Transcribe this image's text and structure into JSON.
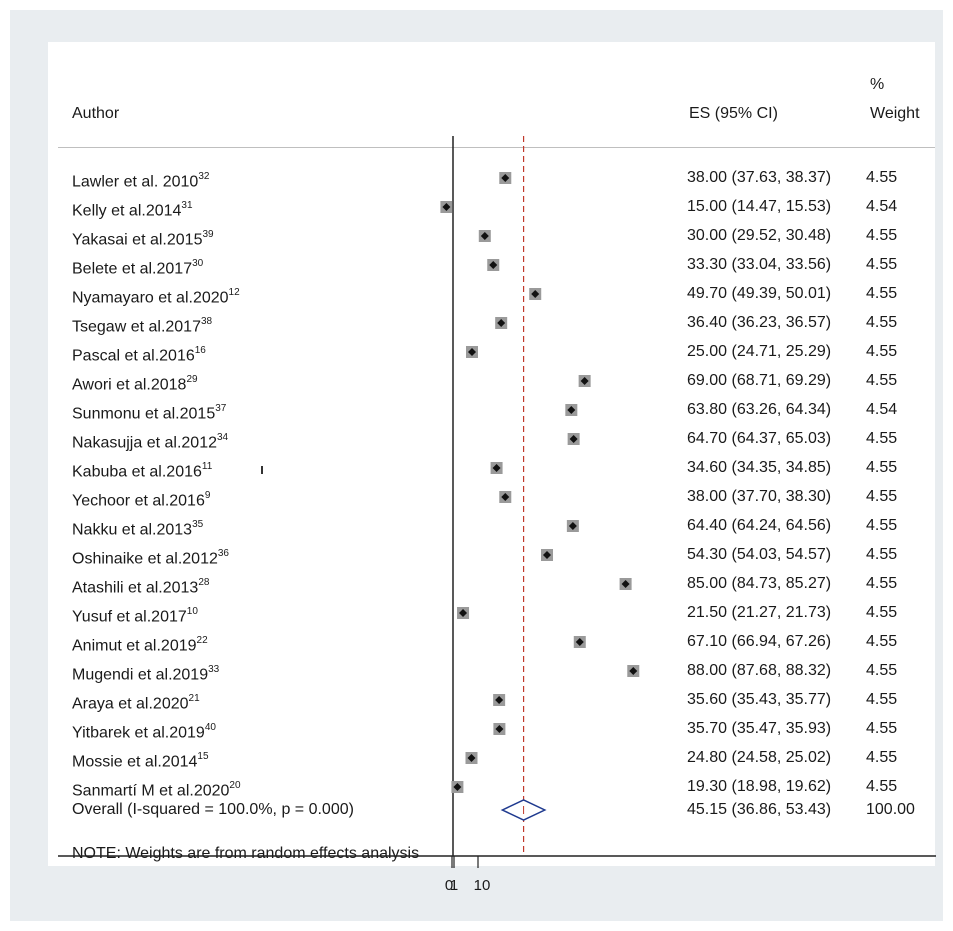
{
  "header": {
    "author": "Author",
    "es": "ES (95% CI)",
    "weight_pct": "%",
    "weight": "Weight"
  },
  "studies": [
    {
      "author": "Lawler et al. 2010",
      "ref": "32",
      "ci": "38.00 (37.63, 38.37)",
      "weight": "4.55"
    },
    {
      "author": "Kelly et al.2014",
      "ref": "31",
      "ci": "15.00 (14.47, 15.53)",
      "weight": "4.54"
    },
    {
      "author": "Yakasai et al.2015",
      "ref": "39",
      "ci": "30.00 (29.52, 30.48)",
      "weight": "4.55"
    },
    {
      "author": "Belete et al.2017",
      "ref": "30",
      "ci": "33.30 (33.04, 33.56)",
      "weight": "4.55"
    },
    {
      "author": "Nyamayaro et al.2020",
      "ref": "12",
      "ci": "49.70 (49.39, 50.01)",
      "weight": "4.55"
    },
    {
      "author": "Tsegaw et al.2017",
      "ref": "38",
      "ci": "36.40 (36.23, 36.57)",
      "weight": "4.55"
    },
    {
      "author": "Pascal et al.2016",
      "ref": "16",
      "ci": "25.00 (24.71, 25.29)",
      "weight": "4.55"
    },
    {
      "author": "Awori et al.2018",
      "ref": "29",
      "ci": "69.00 (68.71, 69.29)",
      "weight": "4.55"
    },
    {
      "author": "Sunmonu et al.2015",
      "ref": "37",
      "ci": "63.80 (63.26, 64.34)",
      "weight": "4.54"
    },
    {
      "author": "Nakasujja et al.2012",
      "ref": "34",
      "ci": "64.70 (64.37, 65.03)",
      "weight": "4.55"
    },
    {
      "author": "Kabuba et al.2016",
      "ref": "11",
      "ci": "34.60 (34.35, 34.85)",
      "weight": "4.55"
    },
    {
      "author": "Yechoor et al.2016",
      "ref": "9",
      "ci": "38.00 (37.70, 38.30)",
      "weight": "4.55"
    },
    {
      "author": "Nakku et al.2013",
      "ref": "35",
      "ci": "64.40 (64.24, 64.56)",
      "weight": "4.55"
    },
    {
      "author": "Oshinaike et al.2012",
      "ref": "36",
      "ci": "54.30 (54.03, 54.57)",
      "weight": "4.55"
    },
    {
      "author": "Atashili et al.2013",
      "ref": "28",
      "ci": "85.00 (84.73, 85.27)",
      "weight": "4.55"
    },
    {
      "author": "Yusuf et al.2017",
      "ref": "10",
      "ci": "21.50 (21.27, 21.73)",
      "weight": "4.55"
    },
    {
      "author": "Animut et al.2019",
      "ref": "22",
      "ci": "67.10 (66.94, 67.26)",
      "weight": "4.55"
    },
    {
      "author": "Mugendi et al.2019",
      "ref": "33",
      "ci": "88.00 (87.68, 88.32)",
      "weight": "4.55"
    },
    {
      "author": "Araya et al.2020",
      "ref": "21",
      "ci": "35.60 (35.43, 35.77)",
      "weight": "4.55"
    },
    {
      "author": "Yitbarek et al.2019",
      "ref": "40",
      "ci": "35.70 (35.47, 35.93)",
      "weight": "4.55"
    },
    {
      "author": "Mossie et al.2014",
      "ref": "15",
      "ci": "24.80 (24.58, 25.02)",
      "weight": "4.55"
    },
    {
      "author": "Sanmartí M et al.2020",
      "ref": "20",
      "ci": "19.30 (18.98, 19.62)",
      "weight": "4.55"
    }
  ],
  "overall": {
    "label": "Overall  (I-squared = 100.0%, p = 0.000)",
    "ci": "45.15 (36.86, 53.43)",
    "weight": "100.00"
  },
  "note": "NOTE: Weights are from random effects analysis",
  "axis": {
    "tick_labels": [
      "0",
      "1",
      "10"
    ]
  },
  "chart_data": {
    "type": "scatter",
    "title": "",
    "xlabel": "",
    "ylabel": "",
    "x_ticks": [
      "0",
      "1",
      "10"
    ],
    "series": [
      {
        "values": [
          {
            "study": "Lawler et al. 2010",
            "es": 38.0,
            "lower": 37.63,
            "upper": 38.37,
            "weight": 4.55
          },
          {
            "study": "Kelly et al.2014",
            "es": 15.0,
            "lower": 14.47,
            "upper": 15.53,
            "weight": 4.54
          },
          {
            "study": "Yakasai et al.2015",
            "es": 30.0,
            "lower": 29.52,
            "upper": 30.48,
            "weight": 4.55
          },
          {
            "study": "Belete et al.2017",
            "es": 33.3,
            "lower": 33.04,
            "upper": 33.56,
            "weight": 4.55
          },
          {
            "study": "Nyamayaro et al.2020",
            "es": 49.7,
            "lower": 49.39,
            "upper": 50.01,
            "weight": 4.55
          },
          {
            "study": "Tsegaw et al.2017",
            "es": 36.4,
            "lower": 36.23,
            "upper": 36.57,
            "weight": 4.55
          },
          {
            "study": "Pascal et al.2016",
            "es": 25.0,
            "lower": 24.71,
            "upper": 25.29,
            "weight": 4.55
          },
          {
            "study": "Awori et al.2018",
            "es": 69.0,
            "lower": 68.71,
            "upper": 69.29,
            "weight": 4.55
          },
          {
            "study": "Sunmonu et al.2015",
            "es": 63.8,
            "lower": 63.26,
            "upper": 64.34,
            "weight": 4.54
          },
          {
            "study": "Nakasujja et al.2012",
            "es": 64.7,
            "lower": 64.37,
            "upper": 65.03,
            "weight": 4.55
          },
          {
            "study": "Kabuba et al.2016",
            "es": 34.6,
            "lower": 34.35,
            "upper": 34.85,
            "weight": 4.55
          },
          {
            "study": "Yechoor et al.2016",
            "es": 38.0,
            "lower": 37.7,
            "upper": 38.3,
            "weight": 4.55
          },
          {
            "study": "Nakku et al.2013",
            "es": 64.4,
            "lower": 64.24,
            "upper": 64.56,
            "weight": 4.55
          },
          {
            "study": "Oshinaike et al.2012",
            "es": 54.3,
            "lower": 54.03,
            "upper": 54.57,
            "weight": 4.55
          },
          {
            "study": "Atashili et al.2013",
            "es": 85.0,
            "lower": 84.73,
            "upper": 85.27,
            "weight": 4.55
          },
          {
            "study": "Yusuf et al.2017",
            "es": 21.5,
            "lower": 21.27,
            "upper": 21.73,
            "weight": 4.55
          },
          {
            "study": "Animut et al.2019",
            "es": 67.1,
            "lower": 66.94,
            "upper": 67.26,
            "weight": 4.55
          },
          {
            "study": "Mugendi et al.2019",
            "es": 88.0,
            "lower": 87.68,
            "upper": 88.32,
            "weight": 4.55
          },
          {
            "study": "Araya et al.2020",
            "es": 35.6,
            "lower": 35.43,
            "upper": 35.77,
            "weight": 4.55
          },
          {
            "study": "Yitbarek et al.2019",
            "es": 35.7,
            "lower": 35.47,
            "upper": 35.93,
            "weight": 4.55
          },
          {
            "study": "Mossie et al.2014",
            "es": 24.8,
            "lower": 24.58,
            "upper": 25.02,
            "weight": 4.55
          },
          {
            "study": "Sanmartí M et al.2020",
            "es": 19.3,
            "lower": 18.98,
            "upper": 19.62,
            "weight": 4.55
          }
        ]
      }
    ],
    "overall": {
      "es": 45.15,
      "lower": 36.86,
      "upper": 53.43,
      "weight": 100.0
    },
    "reference_line": 45.15,
    "colors": {
      "marker": "#111111",
      "weight_box": "#9a9a9a",
      "overall_diamond": "#1f3a8f",
      "reference_line": "#c0392b"
    },
    "grid": false,
    "legend": "none"
  }
}
